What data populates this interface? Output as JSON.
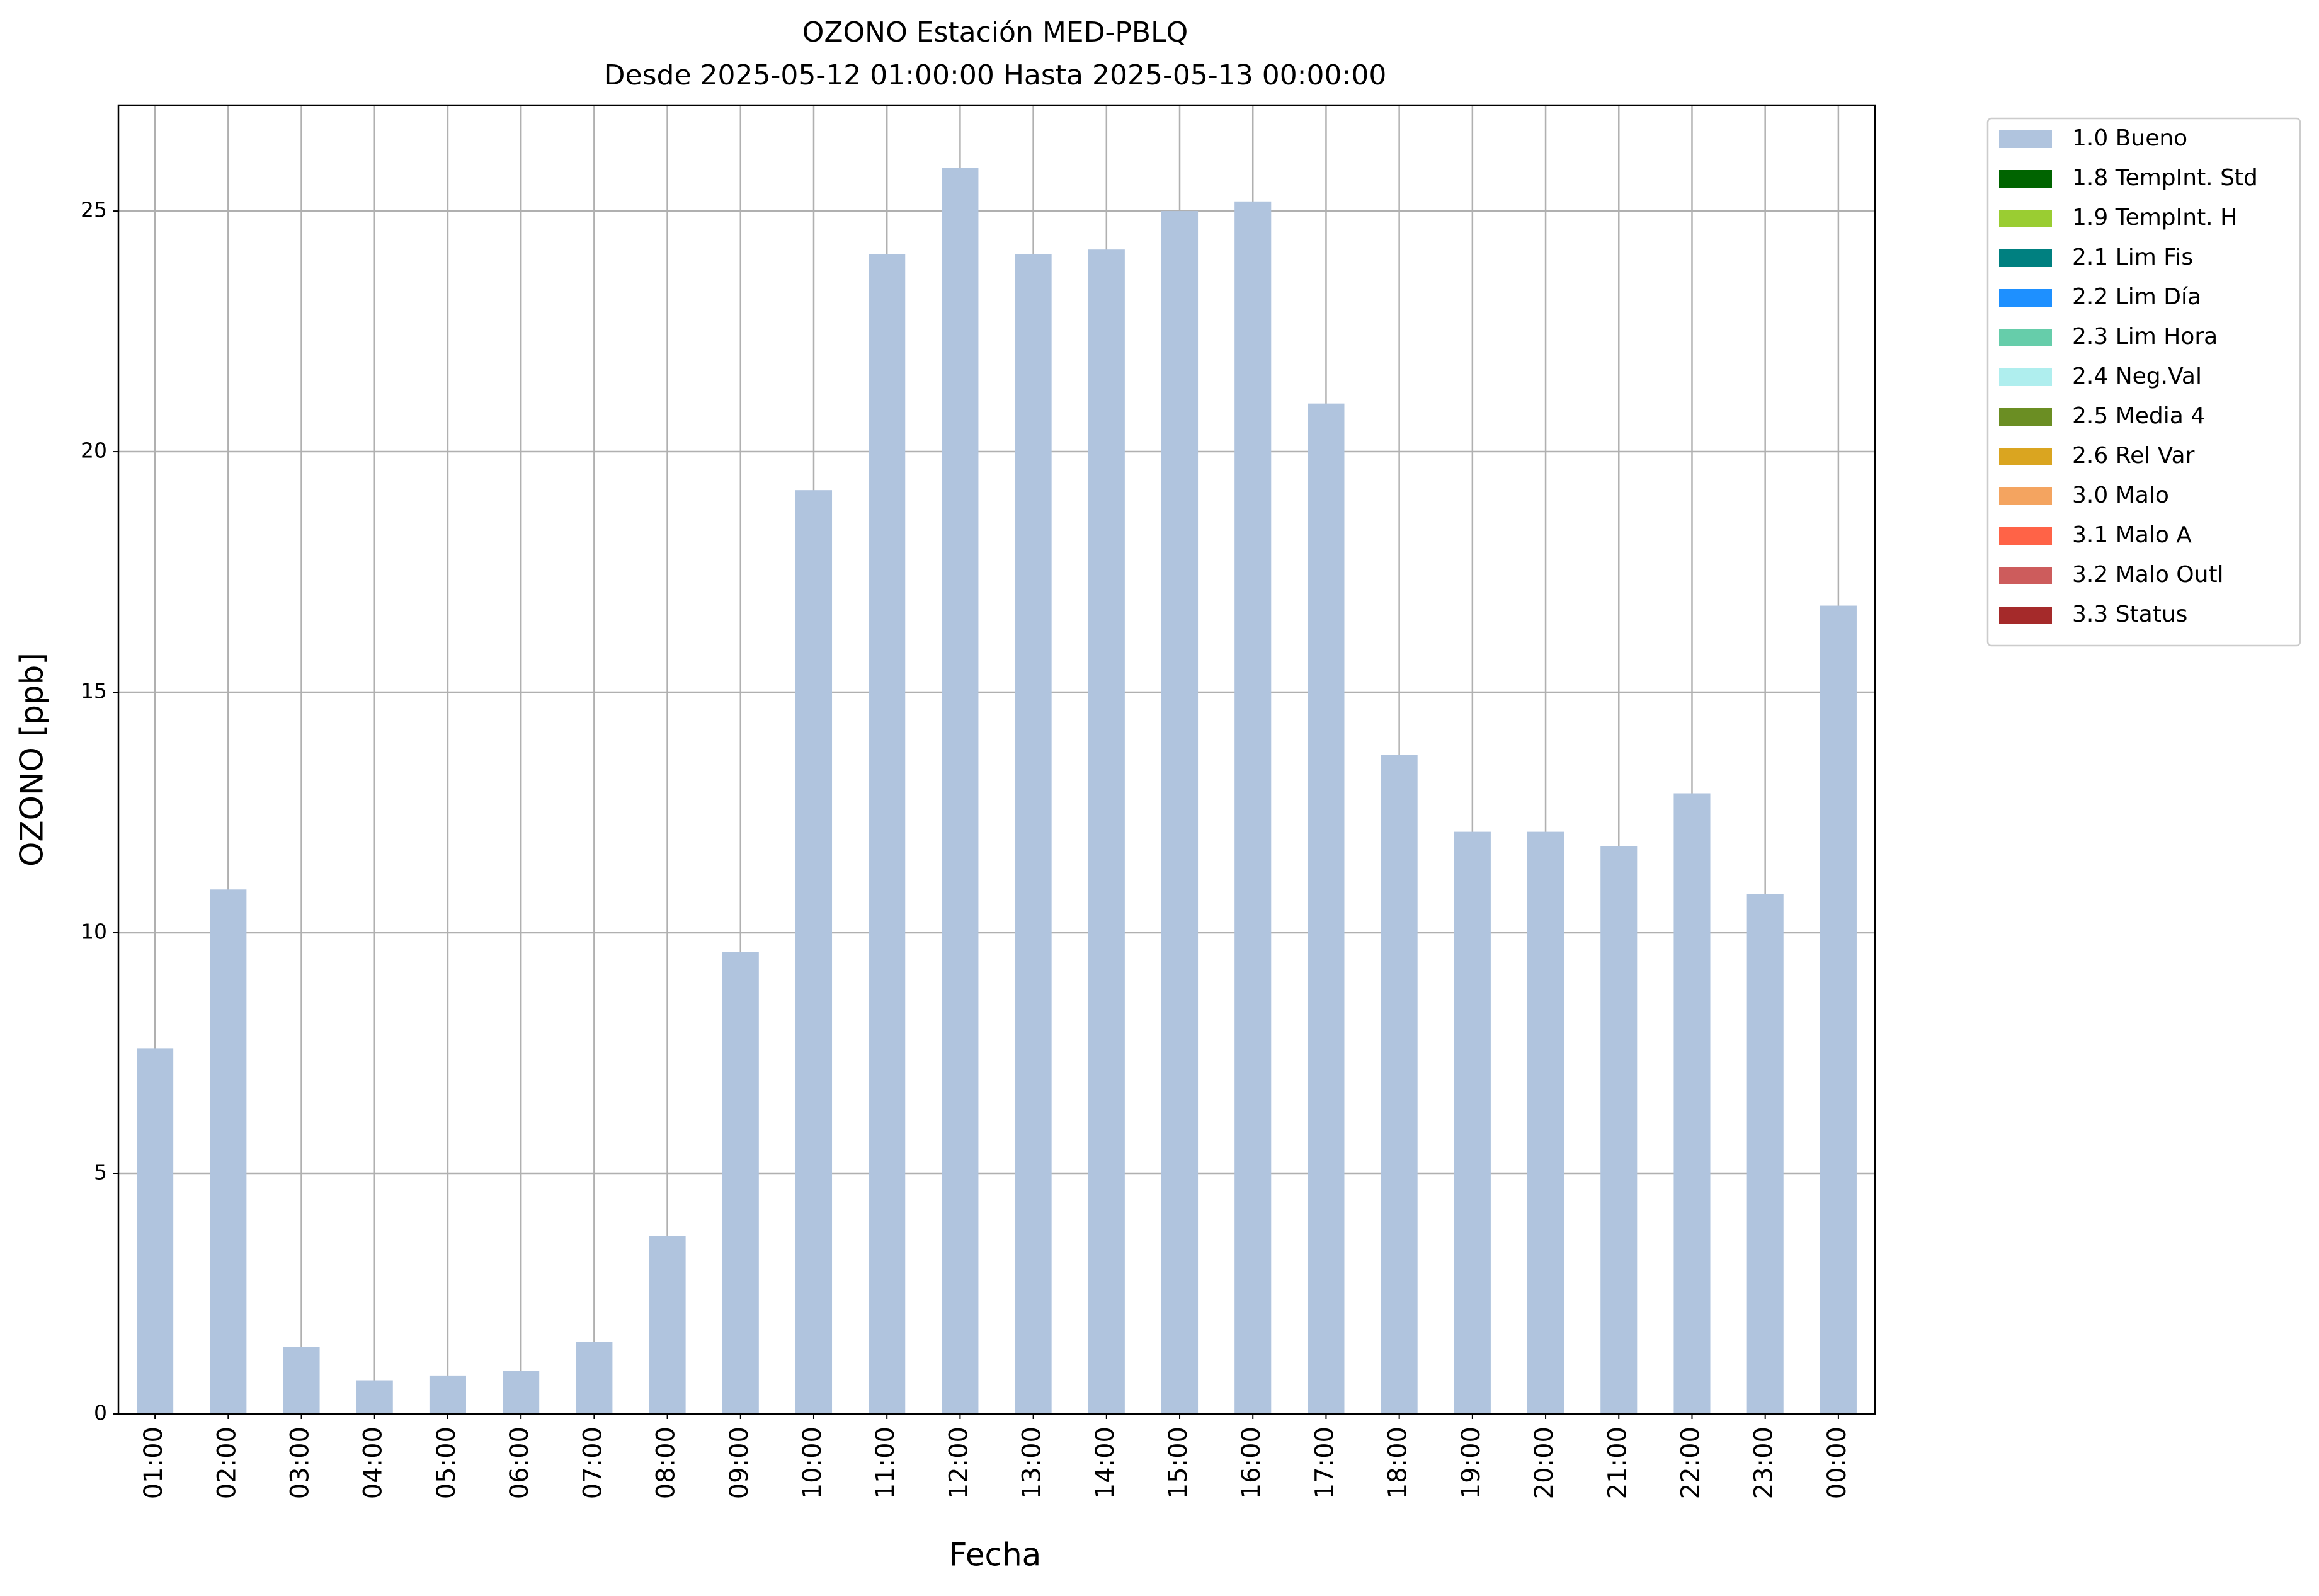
{
  "chart_data": {
    "type": "bar",
    "title": "OZONO Estación MED-PBLQ",
    "subtitle": "Desde 2025-05-12 01:00:00 Hasta 2025-05-13 00:00:00",
    "x_label": "Fecha",
    "y_label": "OZONO [ppb]",
    "categories": [
      "01:00",
      "02:00",
      "03:00",
      "04:00",
      "05:00",
      "06:00",
      "07:00",
      "08:00",
      "09:00",
      "10:00",
      "11:00",
      "12:00",
      "13:00",
      "14:00",
      "15:00",
      "16:00",
      "17:00",
      "18:00",
      "19:00",
      "20:00",
      "21:00",
      "22:00",
      "23:00",
      "00:00"
    ],
    "series": [
      {
        "name": "1.0 Bueno",
        "color": "#b0c4de",
        "values": [
          7.6,
          10.9,
          1.4,
          0.7,
          0.8,
          0.9,
          1.5,
          3.7,
          9.6,
          19.2,
          24.1,
          25.9,
          24.1,
          24.2,
          25.0,
          25.2,
          21.0,
          13.7,
          12.1,
          12.1,
          11.8,
          12.9,
          10.8,
          16.8
        ]
      },
      {
        "name": "1.8 TempInt. Std",
        "color": "#006400",
        "values": [
          null,
          null,
          null,
          null,
          null,
          null,
          null,
          null,
          null,
          null,
          null,
          null,
          null,
          null,
          null,
          null,
          null,
          null,
          null,
          null,
          null,
          null,
          null,
          null
        ]
      },
      {
        "name": "1.9 TempInt. H",
        "color": "#9acd32",
        "values": [
          null,
          null,
          null,
          null,
          null,
          null,
          null,
          null,
          null,
          null,
          null,
          null,
          null,
          null,
          null,
          null,
          null,
          null,
          null,
          null,
          null,
          null,
          null,
          null
        ]
      },
      {
        "name": "2.1 Lim Fis",
        "color": "#008080",
        "values": [
          null,
          null,
          null,
          null,
          null,
          null,
          null,
          null,
          null,
          null,
          null,
          null,
          null,
          null,
          null,
          null,
          null,
          null,
          null,
          null,
          null,
          null,
          null,
          null
        ]
      },
      {
        "name": "2.2 Lim Día",
        "color": "#1e90ff",
        "values": [
          null,
          null,
          null,
          null,
          null,
          null,
          null,
          null,
          null,
          null,
          null,
          null,
          null,
          null,
          null,
          null,
          null,
          null,
          null,
          null,
          null,
          null,
          null,
          null
        ]
      },
      {
        "name": "2.3 Lim Hora",
        "color": "#66cdaa",
        "values": [
          null,
          null,
          null,
          null,
          null,
          null,
          null,
          null,
          null,
          null,
          null,
          null,
          null,
          null,
          null,
          null,
          null,
          null,
          null,
          null,
          null,
          null,
          null,
          null
        ]
      },
      {
        "name": "2.4 Neg.Val",
        "color": "#afeeee",
        "values": [
          null,
          null,
          null,
          null,
          null,
          null,
          null,
          null,
          null,
          null,
          null,
          null,
          null,
          null,
          null,
          null,
          null,
          null,
          null,
          null,
          null,
          null,
          null,
          null
        ]
      },
      {
        "name": "2.5 Media 4",
        "color": "#6b8e23",
        "values": [
          null,
          null,
          null,
          null,
          null,
          null,
          null,
          null,
          null,
          null,
          null,
          null,
          null,
          null,
          null,
          null,
          null,
          null,
          null,
          null,
          null,
          null,
          null,
          null
        ]
      },
      {
        "name": "2.6 Rel Var",
        "color": "#daa520",
        "values": [
          null,
          null,
          null,
          null,
          null,
          null,
          null,
          null,
          null,
          null,
          null,
          null,
          null,
          null,
          null,
          null,
          null,
          null,
          null,
          null,
          null,
          null,
          null,
          null
        ]
      },
      {
        "name": "3.0 Malo",
        "color": "#f4a460",
        "values": [
          null,
          null,
          null,
          null,
          null,
          null,
          null,
          null,
          null,
          null,
          null,
          null,
          null,
          null,
          null,
          null,
          null,
          null,
          null,
          null,
          null,
          null,
          null,
          null
        ]
      },
      {
        "name": "3.1 Malo A",
        "color": "#ff6347",
        "values": [
          null,
          null,
          null,
          null,
          null,
          null,
          null,
          null,
          null,
          null,
          null,
          null,
          null,
          null,
          null,
          null,
          null,
          null,
          null,
          null,
          null,
          null,
          null,
          null
        ]
      },
      {
        "name": "3.2 Malo Outl",
        "color": "#cd5c5c",
        "values": [
          null,
          null,
          null,
          null,
          null,
          null,
          null,
          null,
          null,
          null,
          null,
          null,
          null,
          null,
          null,
          null,
          null,
          null,
          null,
          null,
          null,
          null,
          null,
          null
        ]
      },
      {
        "name": "3.3 Status",
        "color": "#a52a2a",
        "values": [
          null,
          null,
          null,
          null,
          null,
          null,
          null,
          null,
          null,
          null,
          null,
          null,
          null,
          null,
          null,
          null,
          null,
          null,
          null,
          null,
          null,
          null,
          null,
          null
        ]
      }
    ],
    "ylim": [
      0,
      27.2
    ],
    "yticks": [
      0,
      5,
      10,
      15,
      20,
      25
    ],
    "grid": true,
    "legend": "outside-upper-right"
  }
}
